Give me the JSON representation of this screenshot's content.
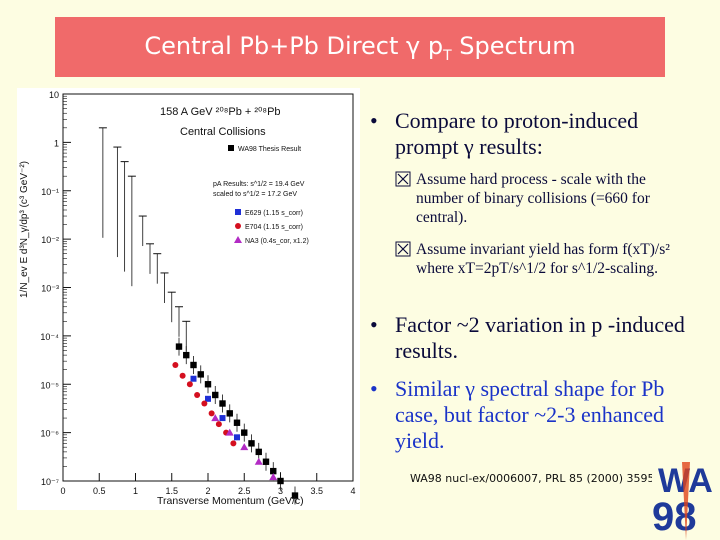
{
  "slide": {
    "title_main": "Central Pb+Pb Direct γ  p",
    "title_sub": "T",
    "title_tail": " Spectrum"
  },
  "plot": {
    "header_line1": "158 A GeV ²⁰⁸Pb + ²⁰⁸Pb",
    "header_line2": "Central Collisions",
    "legend_wa98": "WA98 Thesis Result",
    "pa_header": "pA Results: s^1/2 = 19.4 GeV",
    "pa_scaled": "scaled to s^1/2 = 17.2 GeV",
    "pa_e629": "E629 (1.15 s_corr)",
    "pa_e704": "E704 (1.15 s_corr)",
    "pa_na3": "NA3 (0.4s_cor, x1.2)",
    "y_axis_label": "1/N_ev E d³N_γ/dp³ (c³ GeV⁻²)",
    "x_axis_label": "Transverse Momentum (GeV/c)",
    "y_ticks": [
      "10",
      "1",
      "10⁻¹",
      "10⁻²",
      "10⁻³",
      "10⁻⁴",
      "10⁻⁵",
      "10⁻⁶",
      "10⁻⁷"
    ],
    "x_ticks": [
      "0",
      "0.5",
      "1",
      "1.5",
      "2",
      "2.5",
      "3",
      "3.5",
      "4"
    ],
    "colors": {
      "wa98": "#000000",
      "e629": "#1f2fd6",
      "e704": "#d40f1f",
      "na3": "#b22bc4"
    }
  },
  "chart_data": {
    "type": "scatter",
    "xlabel": "Transverse Momentum (GeV/c)",
    "ylabel": "1/N_ev E d³N_γ/dp³ (c³ GeV⁻²)",
    "xlim": [
      0,
      4
    ],
    "ylog": true,
    "ylim_exponents": [
      -7,
      1
    ],
    "series": [
      {
        "name": "WA98 Thesis Result",
        "x": [
          1.6,
          1.7,
          1.8,
          1.9,
          2.0,
          2.1,
          2.2,
          2.3,
          2.4,
          2.5,
          2.6,
          2.7,
          2.8,
          2.9,
          3.0,
          3.2
        ],
        "y": [
          6e-05,
          4e-05,
          2.5e-05,
          1.6e-05,
          1e-05,
          6e-06,
          4e-06,
          2.5e-06,
          1.6e-06,
          1e-06,
          6e-07,
          4e-07,
          2.5e-07,
          1.6e-07,
          1e-07,
          5e-08
        ]
      },
      {
        "name": "E629 (1.15 s_corr)",
        "x": [
          1.8,
          2.0,
          2.2,
          2.4
        ],
        "y": [
          1.3e-05,
          5e-06,
          2e-06,
          8e-07
        ]
      },
      {
        "name": "E704 (1.15 s_corr)",
        "x": [
          1.55,
          1.65,
          1.75,
          1.85,
          1.95,
          2.05,
          2.15,
          2.25,
          2.35
        ],
        "y": [
          2.5e-05,
          1.5e-05,
          1e-05,
          6e-06,
          4e-06,
          2.5e-06,
          1.5e-06,
          1e-06,
          6e-07
        ]
      },
      {
        "name": "NA3 (0.4s_cor, x1.2)",
        "x": [
          2.1,
          2.3,
          2.5,
          2.7,
          2.9
        ],
        "y": [
          2e-06,
          1e-06,
          5e-07,
          2.5e-07,
          1.2e-07
        ]
      }
    ]
  },
  "bullets": {
    "b1": "Compare to proton-induced prompt γ results:",
    "s1": "Assume hard process - scale with the number of binary collisions (=660 for central).",
    "s2": "Assume invariant yield has form f(xT)/s² where xT=2pT/s^1/2 for s^1/2-scaling.",
    "b2": "Factor ~2 variation in        p -induced results.",
    "b3": "Similar γ spectral shape for Pb case, but factor ~2-3 enhanced yield."
  },
  "reference": "WA98 nucl-ex/0006007, PRL 85 (2000) 3595.",
  "logo": {
    "line1": "WA",
    "line2": "98"
  }
}
